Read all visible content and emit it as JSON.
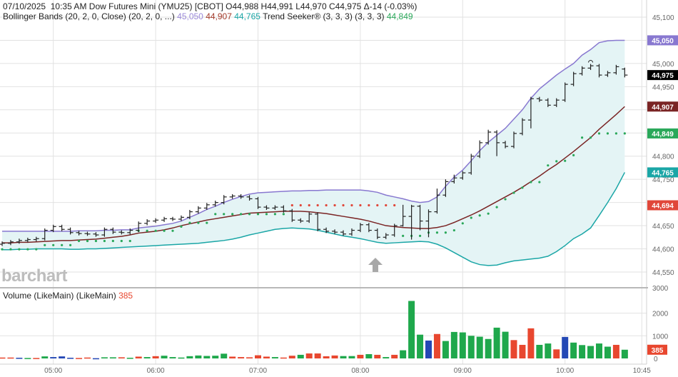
{
  "header": {
    "date": "07/10/2025",
    "time": "10:35 AM",
    "instrument": "Dow Futures Mini (YMU25) [CBOT]",
    "ohlc": "O44,988 H44,991 L44,970 C44,975 Δ-14 (-0.03%)",
    "bb_label": "Bollinger Bands (20, 2, 0, Close)  (20, 2, 0, ...)",
    "bb_upper": "45,050",
    "bb_middle": "44,907",
    "bb_lower": "44,765",
    "ts_label": "Trend Seeker® (3, 3, 3)  (3, 3, 3)",
    "ts_value": "44,849"
  },
  "volume_header": {
    "label": "Volume (LikeMain)  (LikeMain)",
    "value": "385"
  },
  "watermark": "barchart",
  "colors": {
    "up": "#1fa84c",
    "down": "#e8472f",
    "neutral": "#2448b5",
    "bb_upper": "#8878d0",
    "bb_middle": "#7a2424",
    "bb_lower": "#1aa6a6",
    "bb_fill": "#e4f4f5",
    "ts_up": "#2aa85a",
    "ts_down": "#e0473a",
    "price": "#222222"
  },
  "chart_data": [
    {
      "type": "ohlc",
      "title": "Dow Futures Mini (YMU25) [CBOT]",
      "bar_interval": "5 min",
      "first_bar": "04:30",
      "last_bar": "10:35",
      "ylim": [
        44525,
        45125
      ],
      "yticks": [
        "45,100",
        "45,000",
        "44,950",
        "44,800",
        "44,750",
        "44,650",
        "44,600",
        "44,550"
      ],
      "xticks": [
        "05:00",
        "06:00",
        "07:00",
        "08:00",
        "09:00",
        "10:00",
        "10:45"
      ],
      "grid": true,
      "open": [
        44610,
        44612,
        44615,
        44618,
        44620,
        44622,
        44640,
        44648,
        44642,
        44635,
        44633,
        44632,
        44630,
        44642,
        44636,
        44635,
        44640,
        44655,
        44660,
        44662,
        44665,
        44664,
        44668,
        44680,
        44688,
        44695,
        44700,
        44712,
        44714,
        44712,
        44708,
        44690,
        44688,
        44690,
        44682,
        44662,
        44660,
        44675,
        44642,
        44638,
        44636,
        44632,
        44640,
        44652,
        44640,
        44625,
        44630,
        44650,
        44670,
        44692,
        44660,
        44680,
        44716,
        44745,
        44753,
        44764,
        44800,
        44829,
        44852,
        44829,
        44821,
        44849,
        44878,
        44924,
        44921,
        44910,
        44921,
        44955,
        44978,
        44990,
        44995,
        44975,
        44980,
        44988
      ],
      "high": [
        44616,
        44619,
        44622,
        44624,
        44626,
        44644,
        44652,
        44652,
        44646,
        44639,
        44637,
        44636,
        44646,
        44646,
        44640,
        44644,
        44659,
        44664,
        44666,
        44669,
        44669,
        44672,
        44684,
        44692,
        44699,
        44704,
        44716,
        44718,
        44718,
        44716,
        44712,
        44694,
        44694,
        44694,
        44686,
        44666,
        44679,
        44679,
        44646,
        44642,
        44640,
        44644,
        44656,
        44656,
        44644,
        44634,
        44654,
        44695,
        44695,
        44695,
        44685,
        44730,
        44750,
        44760,
        44768,
        44805,
        44834,
        44857,
        44856,
        44833,
        44853,
        44882,
        44928,
        44928,
        44925,
        44925,
        44959,
        44982,
        44994,
        44999,
        44999,
        44984,
        44997,
        44991
      ],
      "low": [
        44606,
        44608,
        44611,
        44614,
        44616,
        44618,
        44636,
        44638,
        44631,
        44629,
        44628,
        44626,
        44626,
        44632,
        44631,
        44631,
        44636,
        44651,
        44656,
        44658,
        44660,
        44660,
        44664,
        44676,
        44684,
        44691,
        44696,
        44708,
        44708,
        44704,
        44686,
        44684,
        44684,
        44678,
        44658,
        44656,
        44656,
        44638,
        44634,
        44632,
        44628,
        44628,
        44636,
        44636,
        44621,
        44621,
        44626,
        44648,
        44620,
        44640,
        44625,
        44676,
        44712,
        44741,
        44749,
        44760,
        44796,
        44825,
        44800,
        44817,
        44817,
        44845,
        44860,
        44917,
        44906,
        44906,
        44917,
        44951,
        44974,
        44986,
        44970,
        44971,
        44976,
        44970
      ],
      "close": [
        44612,
        44615,
        44618,
        44620,
        44622,
        44640,
        44648,
        44642,
        44635,
        44633,
        44632,
        44630,
        44642,
        44636,
        44635,
        44640,
        44655,
        44660,
        44662,
        44665,
        44664,
        44668,
        44680,
        44688,
        44695,
        44700,
        44712,
        44714,
        44712,
        44708,
        44690,
        44688,
        44690,
        44682,
        44662,
        44660,
        44675,
        44642,
        44638,
        44636,
        44632,
        44640,
        44652,
        44640,
        44625,
        44630,
        44650,
        44670,
        44692,
        44660,
        44680,
        44716,
        44745,
        44753,
        44764,
        44800,
        44829,
        44852,
        44829,
        44821,
        44849,
        44878,
        44924,
        44921,
        44910,
        44921,
        44955,
        44978,
        44990,
        44995,
        44975,
        44980,
        44993,
        44975
      ],
      "bb_upper": [
        44638,
        44638,
        44638,
        44638,
        44638,
        44638,
        44638,
        44638,
        44638,
        44639,
        44639,
        44639,
        44640,
        44640,
        44641,
        44641,
        44645,
        44647,
        44649,
        44652,
        44655,
        44660,
        44668,
        44676,
        44685,
        44692,
        44700,
        44707,
        44713,
        44718,
        44721,
        44722,
        44723,
        44724,
        44725,
        44725,
        44726,
        44726,
        44727,
        44727,
        44727,
        44727,
        44727,
        44725,
        44722,
        44716,
        44712,
        44708,
        44703,
        44700,
        44702,
        44712,
        44735,
        44755,
        44770,
        44790,
        44812,
        44830,
        44845,
        44860,
        44880,
        44900,
        44925,
        44945,
        44960,
        44975,
        44988,
        45000,
        45018,
        45030,
        45045,
        45049,
        45050,
        45050
      ],
      "bb_middle": [
        44613,
        44613,
        44614,
        44614,
        44615,
        44616,
        44617,
        44618,
        44618,
        44619,
        44620,
        44621,
        44623,
        44625,
        44627,
        44630,
        44634,
        44636,
        44638,
        44641,
        44645,
        44650,
        44654,
        44658,
        44662,
        44665,
        44668,
        44671,
        44674,
        44677,
        44678,
        44679,
        44680,
        44681,
        44681,
        44681,
        44680,
        44678,
        44676,
        44673,
        44670,
        44667,
        44664,
        44660,
        44655,
        44650,
        44648,
        44646,
        44645,
        44644,
        44644,
        44646,
        44650,
        44657,
        44665,
        44673,
        44682,
        44692,
        44702,
        44712,
        44722,
        44733,
        44745,
        44757,
        44770,
        44782,
        44796,
        44810,
        44825,
        44840,
        44858,
        44874,
        44890,
        44907
      ],
      "bb_lower": [
        44598,
        44598,
        44599,
        44599,
        44600,
        44600,
        44600,
        44600,
        44599,
        44599,
        44600,
        44600,
        44601,
        44602,
        44603,
        44604,
        44605,
        44606,
        44607,
        44608,
        44609,
        44610,
        44611,
        44612,
        44614,
        44616,
        44618,
        44621,
        44625,
        44630,
        44634,
        44638,
        44642,
        44644,
        44645,
        44644,
        44643,
        44640,
        44636,
        44632,
        44628,
        44625,
        44622,
        44618,
        44614,
        44612,
        44613,
        44614,
        44615,
        44616,
        44615,
        44610,
        44602,
        44592,
        44582,
        44572,
        44566,
        44564,
        44565,
        44570,
        44574,
        44576,
        44578,
        44580,
        44584,
        44594,
        44607,
        44622,
        44632,
        44645,
        44672,
        44700,
        44730,
        44765
      ],
      "trend_seeker": [
        44599,
        44599,
        44599,
        44599,
        44599,
        44608,
        44608,
        44608,
        44608,
        44617,
        44617,
        44617,
        44617,
        44617,
        44617,
        44617,
        44639,
        44639,
        44639,
        44639,
        44639,
        44648,
        44656,
        44656,
        44656,
        44675,
        44675,
        44675,
        44675,
        44675,
        44675,
        44675,
        44675,
        44675,
        44694,
        44694,
        44694,
        44694,
        44694,
        44694,
        44694,
        44694,
        44694,
        44694,
        44694,
        44694,
        44694,
        44628,
        44628,
        44628,
        44635,
        44635,
        44635,
        44640,
        44655,
        44667,
        44672,
        44676,
        44690,
        44707,
        44721,
        44732,
        44744,
        44744,
        44780,
        44789,
        44790,
        44802,
        44840,
        44840,
        44849,
        44849,
        44849,
        44849
      ],
      "trend_direction": "ggggggggggggggggggggggggggggggggggrrrrrrrrrrrrrggggggggggggggggggggggggggg",
      "last_values": {
        "bb_upper": "45,050",
        "close": "44,975",
        "bb_middle": "44,907",
        "trend_seeker": "44,849",
        "bb_lower": "44,765",
        "trend_stop": "44,694"
      }
    },
    {
      "type": "bar",
      "title": "Volume (LikeMain)",
      "ylim": [
        0,
        3000
      ],
      "yticks": [
        "3000",
        "2000",
        "1000",
        "0"
      ],
      "values": [
        40,
        40,
        30,
        20,
        20,
        90,
        60,
        90,
        30,
        20,
        40,
        10,
        50,
        50,
        50,
        30,
        80,
        60,
        100,
        120,
        60,
        40,
        100,
        130,
        110,
        120,
        210,
        80,
        60,
        50,
        140,
        80,
        60,
        40,
        120,
        160,
        220,
        220,
        95,
        130,
        105,
        105,
        160,
        190,
        160,
        60,
        160,
        360,
        2540,
        1050,
        790,
        1080,
        770,
        1170,
        1150,
        1000,
        960,
        860,
        1360,
        1180,
        810,
        600,
        1330,
        600,
        660,
        400,
        950,
        700,
        590,
        550,
        660,
        520,
        600,
        385
      ],
      "direction": "ddnudugggddnuudududuuuuuuuuddddduddudddduudududuuunduuuuuuuuddduudnuuuuuduud",
      "last_value": "385"
    }
  ]
}
